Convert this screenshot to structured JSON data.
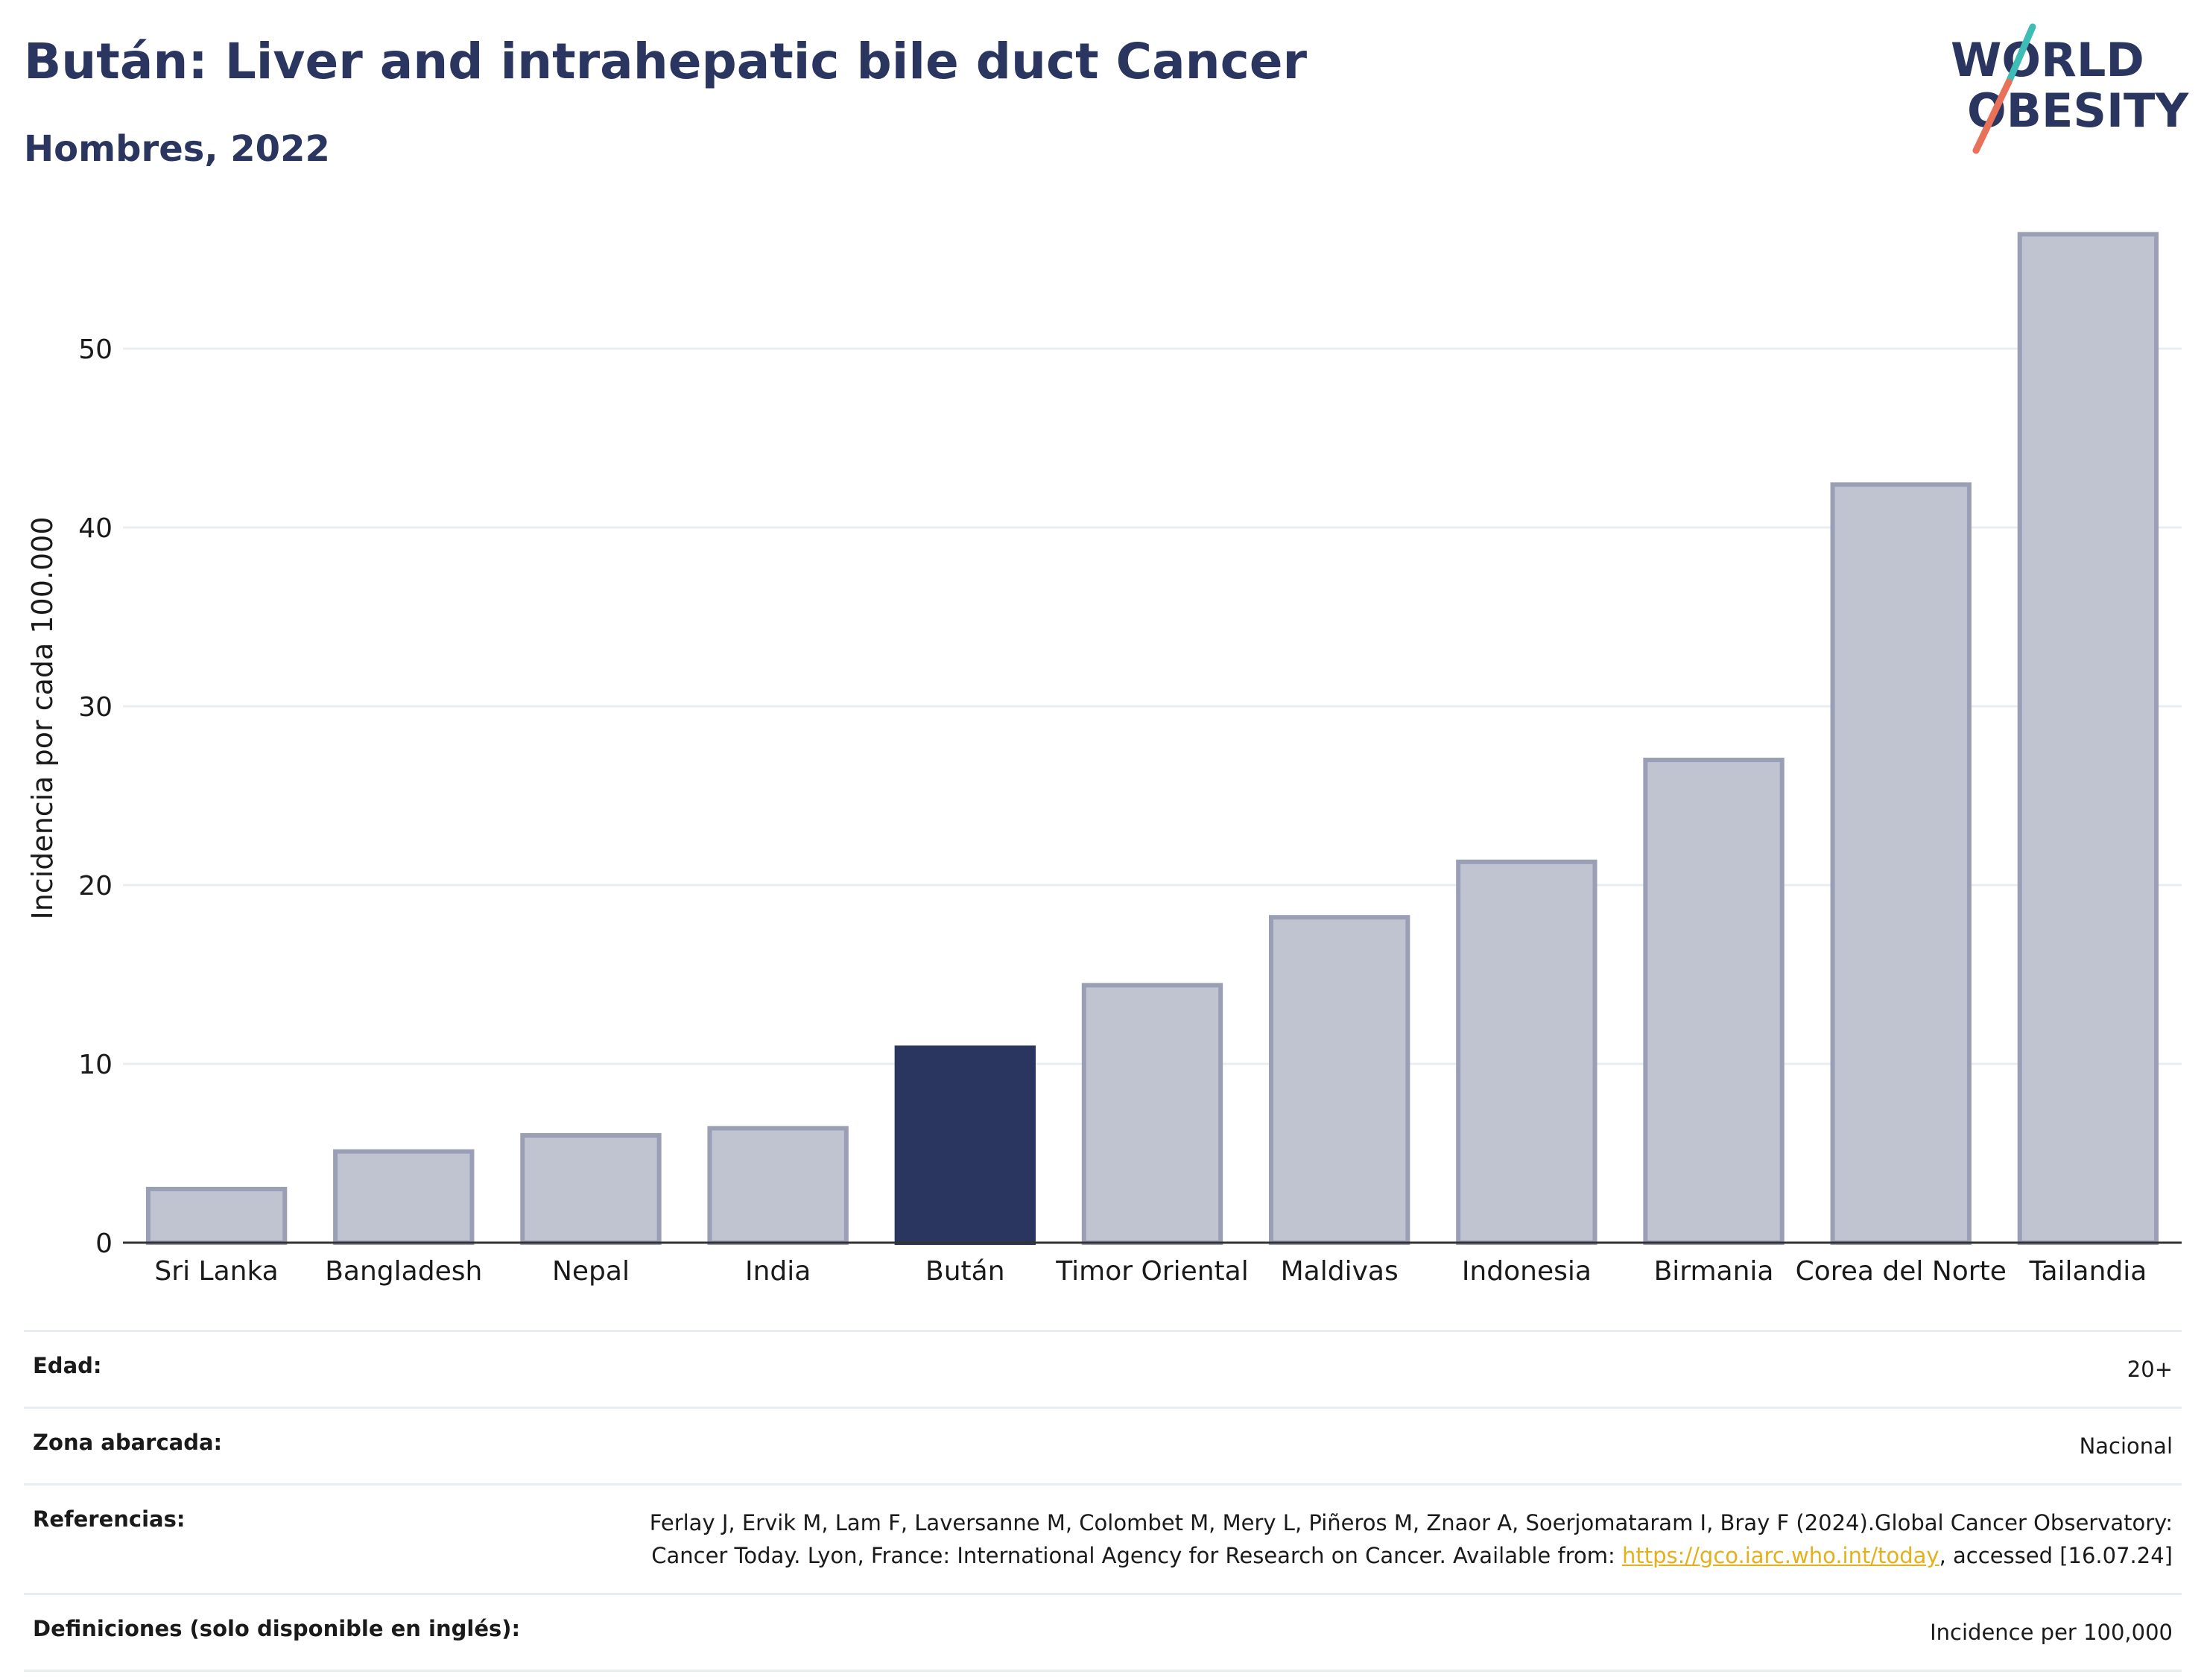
{
  "header": {
    "title": "Bután: Liver and intrahepatic bile duct Cancer",
    "subtitle": "Hombres, 2022"
  },
  "logo": {
    "line1": "WORLD",
    "line2": "OBESITY",
    "accent_colors": [
      "#3dbdb6",
      "#e8715a"
    ]
  },
  "chart_data": {
    "type": "bar",
    "title": "Bután: Liver and intrahepatic bile duct Cancer",
    "subtitle": "Hombres, 2022",
    "xlabel": "",
    "ylabel": "Incidencia por cada 100.000",
    "ylim": [
      0,
      57
    ],
    "yticks": [
      0,
      10,
      20,
      30,
      40,
      50
    ],
    "grid": true,
    "categories": [
      "Sri Lanka",
      "Bangladesh",
      "Nepal",
      "India",
      "Bután",
      "Timor Oriental",
      "Maldivas",
      "Indonesia",
      "Birmania",
      "Corea del Norte",
      "Tailandia"
    ],
    "values": [
      3.0,
      5.1,
      6.0,
      6.4,
      10.9,
      14.4,
      18.2,
      21.3,
      27.0,
      42.4,
      56.4
    ],
    "highlight": "Bután",
    "colors": {
      "bar": "#c0c3d0",
      "bar_edge": "#9a9fb5",
      "highlight": "#2b3660",
      "grid": "#e8edf3",
      "axis": "#333333"
    }
  },
  "meta": {
    "edad_label": "Edad:",
    "edad_value": "20+",
    "zona_label": "Zona abarcada:",
    "zona_value": "Nacional",
    "ref_label": "Referencias:",
    "ref_text_1": "Ferlay J, Ervik M, Lam F, Laversanne M, Colombet M, Mery L, Piñeros M, Znaor A, Soerjomataram I, Bray F (2024).Global Cancer Observatory: Cancer Today. Lyon, France: International Agency for Research on Cancer. Available from: ",
    "ref_link": "https://gco.iarc.who.int/today",
    "ref_text_2": ", accessed [16.07.24]",
    "def_label": "Definiciones (solo disponible en inglés):",
    "def_value": "Incidence per 100,000"
  }
}
